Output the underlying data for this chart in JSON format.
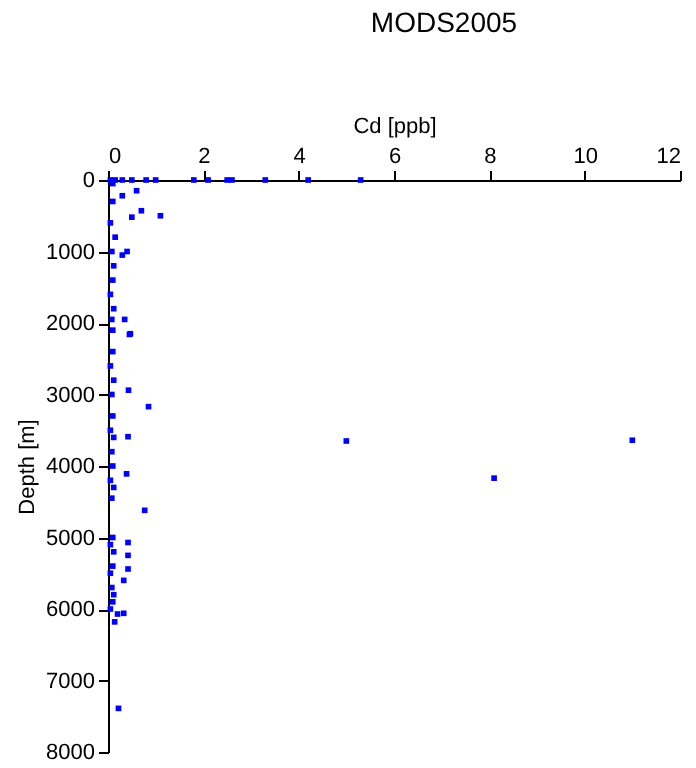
{
  "chart_data": {
    "type": "scatter",
    "title": "MODS2005",
    "xlabel": "Cd [ppb]",
    "ylabel": "Depth [m]",
    "x": [
      1.8,
      2.1,
      2.5,
      2.6,
      3.3,
      4.2,
      5.3,
      1.0,
      0.8,
      0.5,
      0.3,
      0.15,
      0.05,
      0.1,
      0.6,
      0.3,
      0.7,
      0.5,
      1.1,
      0.1,
      0.05,
      0.15,
      0.08,
      0.12,
      0.4,
      0.3,
      0.1,
      0.05,
      0.12,
      0.08,
      0.1,
      0.35,
      0.45,
      0.47,
      0.1,
      0.05,
      0.12,
      0.08,
      0.43,
      0.85,
      0.1,
      0.05,
      0.12,
      0.42,
      0.08,
      0.1,
      0.39,
      0.05,
      0.12,
      0.08,
      0.77,
      0.1,
      0.05,
      0.12,
      0.42,
      0.42,
      0.1,
      0.05,
      0.42,
      0.08,
      0.12,
      0.33,
      0.1,
      0.05,
      0.33,
      0.2,
      0.14,
      0.22,
      5.0,
      11.0,
      8.1
    ],
    "values": [
      0,
      0,
      0,
      0,
      0,
      0,
      0,
      0,
      0,
      0,
      0,
      0,
      0,
      50,
      150,
      220,
      430,
      520,
      500,
      300,
      600,
      800,
      1000,
      1200,
      1000,
      1050,
      1400,
      1600,
      1800,
      1950,
      2100,
      1950,
      2160,
      2150,
      2400,
      2600,
      2800,
      3000,
      2940,
      3170,
      3300,
      3500,
      3600,
      3590,
      3800,
      4000,
      4110,
      4200,
      4300,
      4450,
      4620,
      5000,
      5100,
      5200,
      5070,
      5250,
      5400,
      5500,
      5440,
      5700,
      5800,
      5600,
      5900,
      6000,
      6060,
      6070,
      6180,
      7390,
      3650,
      3640,
      4170
    ],
    "color": "#0000ff",
    "marker": "square",
    "xlim": [
      0,
      12
    ],
    "xticks": [
      0,
      2,
      4,
      6,
      8,
      10,
      12
    ],
    "ylim": [
      8000,
      0
    ],
    "yticks": [
      0,
      1000,
      2000,
      3000,
      4000,
      5000,
      6000,
      7000,
      8000
    ]
  }
}
